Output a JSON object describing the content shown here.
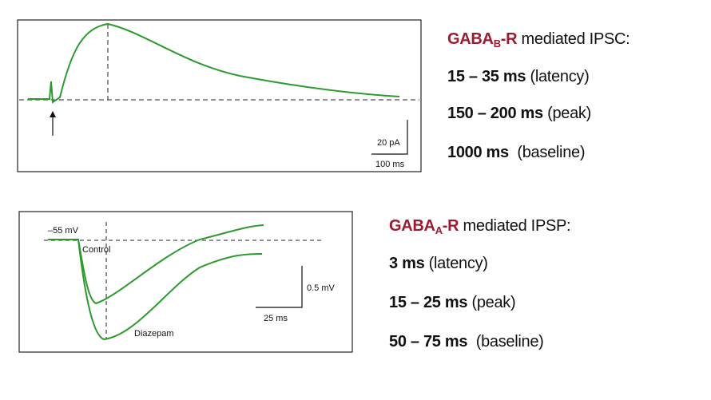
{
  "panel_b": {
    "scale_y": "20 pA",
    "scale_x": "100 ms",
    "title": {
      "receptor": "GABA",
      "subscript": "B",
      "suffix": "-R",
      "rest": " mediated IPSC:"
    },
    "lines": [
      {
        "value": "15 – 35 ms",
        "note": " (latency)"
      },
      {
        "value": "150 – 200 ms",
        "note": " (peak)"
      },
      {
        "value": "1000 ms",
        "note": "  (baseline)"
      }
    ]
  },
  "panel_a": {
    "potential": "–55 mV",
    "control": "Control",
    "drug": "Diazepam",
    "scale_y": "0.5 mV",
    "scale_x": "25 ms",
    "title": {
      "receptor": "GABA",
      "subscript": "A",
      "suffix": "-R",
      "rest": " mediated IPSP:"
    },
    "lines": [
      {
        "value": "3 ms",
        "note": " (latency)"
      },
      {
        "value": "15 – 25 ms",
        "note": " (peak)"
      },
      {
        "value": "50 – 75 ms",
        "note": "  (baseline)"
      }
    ]
  }
}
